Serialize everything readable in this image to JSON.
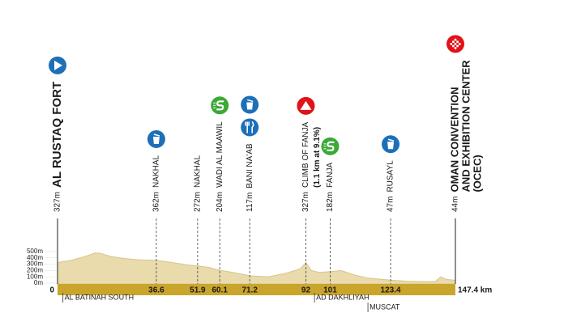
{
  "chart_data": {
    "type": "area",
    "x": [
      0,
      5,
      10,
      14,
      16,
      20,
      25,
      30,
      36.6,
      42,
      48,
      51.9,
      56,
      60.1,
      65,
      71.2,
      78,
      84,
      88,
      90,
      92,
      94,
      97,
      101,
      105,
      110,
      115,
      120,
      123.4,
      130,
      137,
      140,
      142,
      144,
      147.4
    ],
    "values": [
      327,
      360,
      420,
      480,
      470,
      420,
      390,
      370,
      362,
      330,
      290,
      272,
      250,
      204,
      170,
      117,
      100,
      150,
      200,
      230,
      327,
      200,
      170,
      182,
      200,
      130,
      80,
      60,
      47,
      30,
      25,
      30,
      100,
      60,
      44
    ],
    "color": "#e9dbab",
    "xlim": [
      0,
      147.4
    ],
    "ylim": [
      0,
      500
    ],
    "yticks": [
      {
        "value": 0,
        "label": "0m"
      },
      {
        "value": 100,
        "label": "100m"
      },
      {
        "value": 200,
        "label": "200m"
      },
      {
        "value": 300,
        "label": "300m"
      },
      {
        "value": 400,
        "label": "400m"
      },
      {
        "value": 500,
        "label": "500m"
      }
    ],
    "xticks": [
      0,
      36.6,
      51.9,
      60.1,
      71.2,
      92,
      101,
      123.4,
      {
        "value": 147.4,
        "label": "147.4 km"
      }
    ],
    "waypoints": [
      {
        "km": 0,
        "elevation": {
          "value": 327,
          "label": "327m"
        },
        "name": [
          "AL RUSTAQ FORT"
        ],
        "icons": [
          "start"
        ]
      },
      {
        "km": 36.6,
        "elevation": {
          "value": 362,
          "label": "362m"
        },
        "name": [
          "NAKHAL"
        ],
        "icons": [
          "feed"
        ]
      },
      {
        "km": 51.9,
        "elevation": {
          "value": 272,
          "label": "272m"
        },
        "name": [
          "NAKHAL"
        ],
        "icons": []
      },
      {
        "km": 60.1,
        "elevation": {
          "value": 204,
          "label": "204m"
        },
        "name": [
          "WADI AL MAAWIL"
        ],
        "icons": [
          "sprint"
        ]
      },
      {
        "km": 71.2,
        "elevation": {
          "value": 117,
          "label": "117m"
        },
        "name": [
          "BANI NA'AB"
        ],
        "icons": [
          "food",
          "feed"
        ]
      },
      {
        "km": 92,
        "elevation": {
          "value": 327,
          "label": "327m"
        },
        "name": [
          "CLIMB OF FANJA",
          "(1.1 km at 9.1%)"
        ],
        "icons": [
          "climb"
        ]
      },
      {
        "km": 101,
        "elevation": {
          "value": 182,
          "label": "182m"
        },
        "name": [
          "FANJA"
        ],
        "icons": [
          "sprint"
        ]
      },
      {
        "km": 123.4,
        "elevation": {
          "value": 47,
          "label": "47m"
        },
        "name": [
          "RUSAYL"
        ],
        "icons": [
          "feed"
        ]
      },
      {
        "km": 147.4,
        "elevation": {
          "value": 44,
          "label": "44m"
        },
        "name": [
          "OMAN CONVENTION",
          "AND EXHIBITION CENTER",
          "(OCEC)"
        ],
        "icons": [
          "finish"
        ]
      }
    ],
    "regions": [
      {
        "name": "AL BATINAH SOUTH",
        "km": 2
      },
      {
        "name": "AD DAKHLIYAH",
        "km": 95.2
      },
      {
        "name": "MUSCAT",
        "km": 115
      }
    ]
  }
}
